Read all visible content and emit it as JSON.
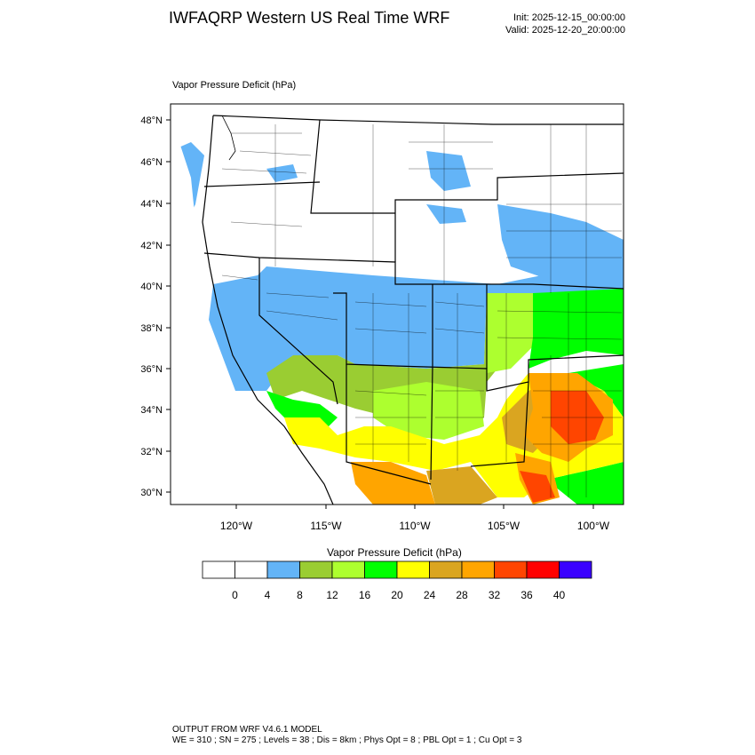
{
  "header": {
    "title": "IWFAQRP Western US Real Time WRF",
    "init": "Init: 2025-12-15_00:00:00",
    "valid": "Valid: 2025-12-20_20:00:00"
  },
  "map": {
    "field_label": "Vapor Pressure Deficit   (hPa)",
    "lat_labels": [
      "48°N",
      "46°N",
      "44°N",
      "42°N",
      "40°N",
      "38°N",
      "36°N",
      "34°N",
      "32°N",
      "30°N"
    ],
    "lon_labels": [
      "120°W",
      "115°W",
      "110°W",
      "105°W",
      "100°W"
    ]
  },
  "colorbar": {
    "title": "Vapor Pressure Deficit  (hPa)",
    "colors": [
      "#ffffff",
      "#ffffff",
      "#63b4f7",
      "#9acd32",
      "#adff2f",
      "#00ff00",
      "#ffff00",
      "#daa520",
      "#ffa500",
      "#ff4500",
      "#ff0000",
      "#3a00ff"
    ],
    "tick_labels": [
      "0",
      "4",
      "8",
      "12",
      "16",
      "20",
      "24",
      "28",
      "32",
      "36",
      "40"
    ]
  },
  "footer": {
    "line1": "OUTPUT FROM WRF V4.6.1 MODEL",
    "line2": "WE = 310 ; SN = 275 ; Levels = 38 ; Dis = 8km ; Phys Opt = 8 ; PBL Opt = 1 ; Cu Opt = 3"
  }
}
